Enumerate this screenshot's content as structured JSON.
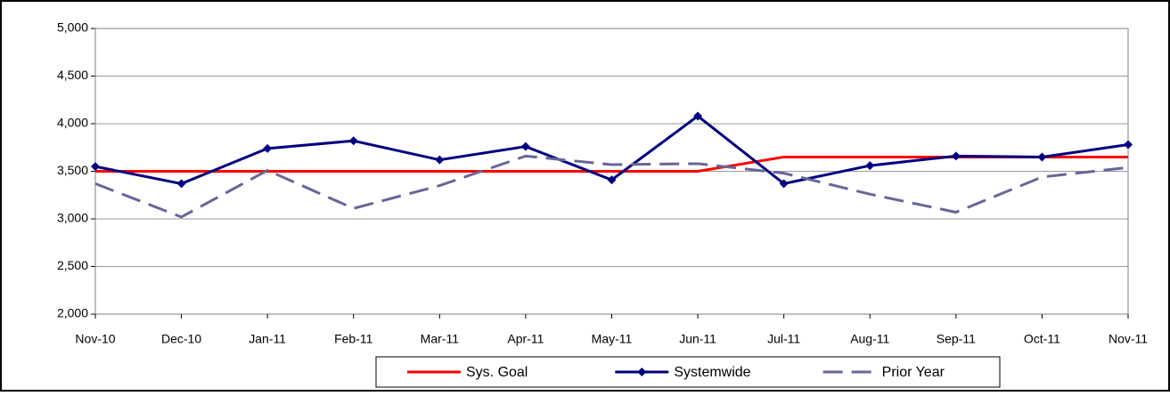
{
  "chart_data": {
    "type": "line",
    "categories": [
      "Nov-10",
      "Dec-10",
      "Jan-11",
      "Feb-11",
      "Mar-11",
      "Apr-11",
      "May-11",
      "Jun-11",
      "Jul-11",
      "Aug-11",
      "Sep-11",
      "Oct-11",
      "Nov-11"
    ],
    "series": [
      {
        "name": "Sys. Goal",
        "color": "#ff0000",
        "values": [
          3500,
          3500,
          3500,
          3500,
          3500,
          3500,
          3500,
          3500,
          3650,
          3650,
          3650,
          3650,
          3650
        ]
      },
      {
        "name": "Systemwide",
        "color": "#000080",
        "marker": "diamond",
        "values": [
          3550,
          3370,
          3740,
          3820,
          3620,
          3760,
          3410,
          4080,
          3370,
          3560,
          3660,
          3650,
          3780
        ]
      },
      {
        "name": "Prior Year",
        "color": "#666699",
        "dash": true,
        "values": [
          3370,
          3020,
          3510,
          3110,
          3350,
          3660,
          3570,
          3580,
          3480,
          3260,
          3070,
          3440,
          3540
        ]
      }
    ],
    "ylim": [
      2000,
      5000
    ],
    "yticks": [
      {
        "value": 2000,
        "label": "2,000"
      },
      {
        "value": 2500,
        "label": "2,500"
      },
      {
        "value": 3000,
        "label": "3,000"
      },
      {
        "value": 3500,
        "label": "3,500"
      },
      {
        "value": 4000,
        "label": "4,000"
      },
      {
        "value": 4500,
        "label": "4,500"
      },
      {
        "value": 5000,
        "label": "5,000"
      }
    ],
    "grid": true,
    "legend": "bottom"
  }
}
